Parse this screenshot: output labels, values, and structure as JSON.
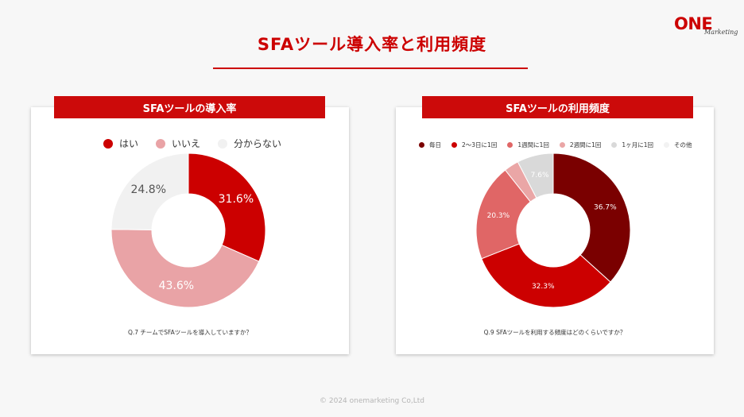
{
  "page": {
    "title": "SFAツール導入率と利用頻度",
    "logo_main": "ONE",
    "logo_sub": "Marketing",
    "footer": "© 2024 onemarketing Co,Ltd"
  },
  "colors": {
    "accent": "#cc0000",
    "header_bg": "#cc0a0a"
  },
  "chart_data": [
    {
      "type": "pie",
      "title": "SFAツールの導入率",
      "question": "Q.7 チームでSFAツールを導入していますか？",
      "categories": [
        "はい",
        "いいえ",
        "分からない"
      ],
      "values": [
        31.6,
        43.6,
        24.8
      ],
      "labels": [
        "31.6%",
        "43.6%",
        "24.8%"
      ],
      "colors": [
        "#cc0000",
        "#e9a3a6",
        "#f1f1f1"
      ],
      "label_colors": [
        "#ffffff",
        "#ffffff",
        "#555555"
      ],
      "legend": "top"
    },
    {
      "type": "pie",
      "title": "SFAツールの利用頻度",
      "question": "Q.9 SFAツールを利用する頻度はどのくらいですか？",
      "categories": [
        "毎日",
        "2〜3日に1回",
        "1週間に1回",
        "2週間に1回",
        "1ヶ月に1回",
        "その他"
      ],
      "values": [
        36.7,
        32.3,
        20.3,
        3.1,
        7.6,
        0
      ],
      "labels": [
        "36.7%",
        "32.3%",
        "20.3%",
        "",
        "7.6%",
        ""
      ],
      "colors": [
        "#7a0000",
        "#cc0000",
        "#e06666",
        "#eaa6a6",
        "#d9d9d9",
        "#f2f2f2"
      ],
      "label_colors": [
        "#ffffff",
        "#ffffff",
        "#ffffff",
        "#ffffff",
        "#ffffff",
        "#ffffff"
      ],
      "legend": "top"
    }
  ]
}
